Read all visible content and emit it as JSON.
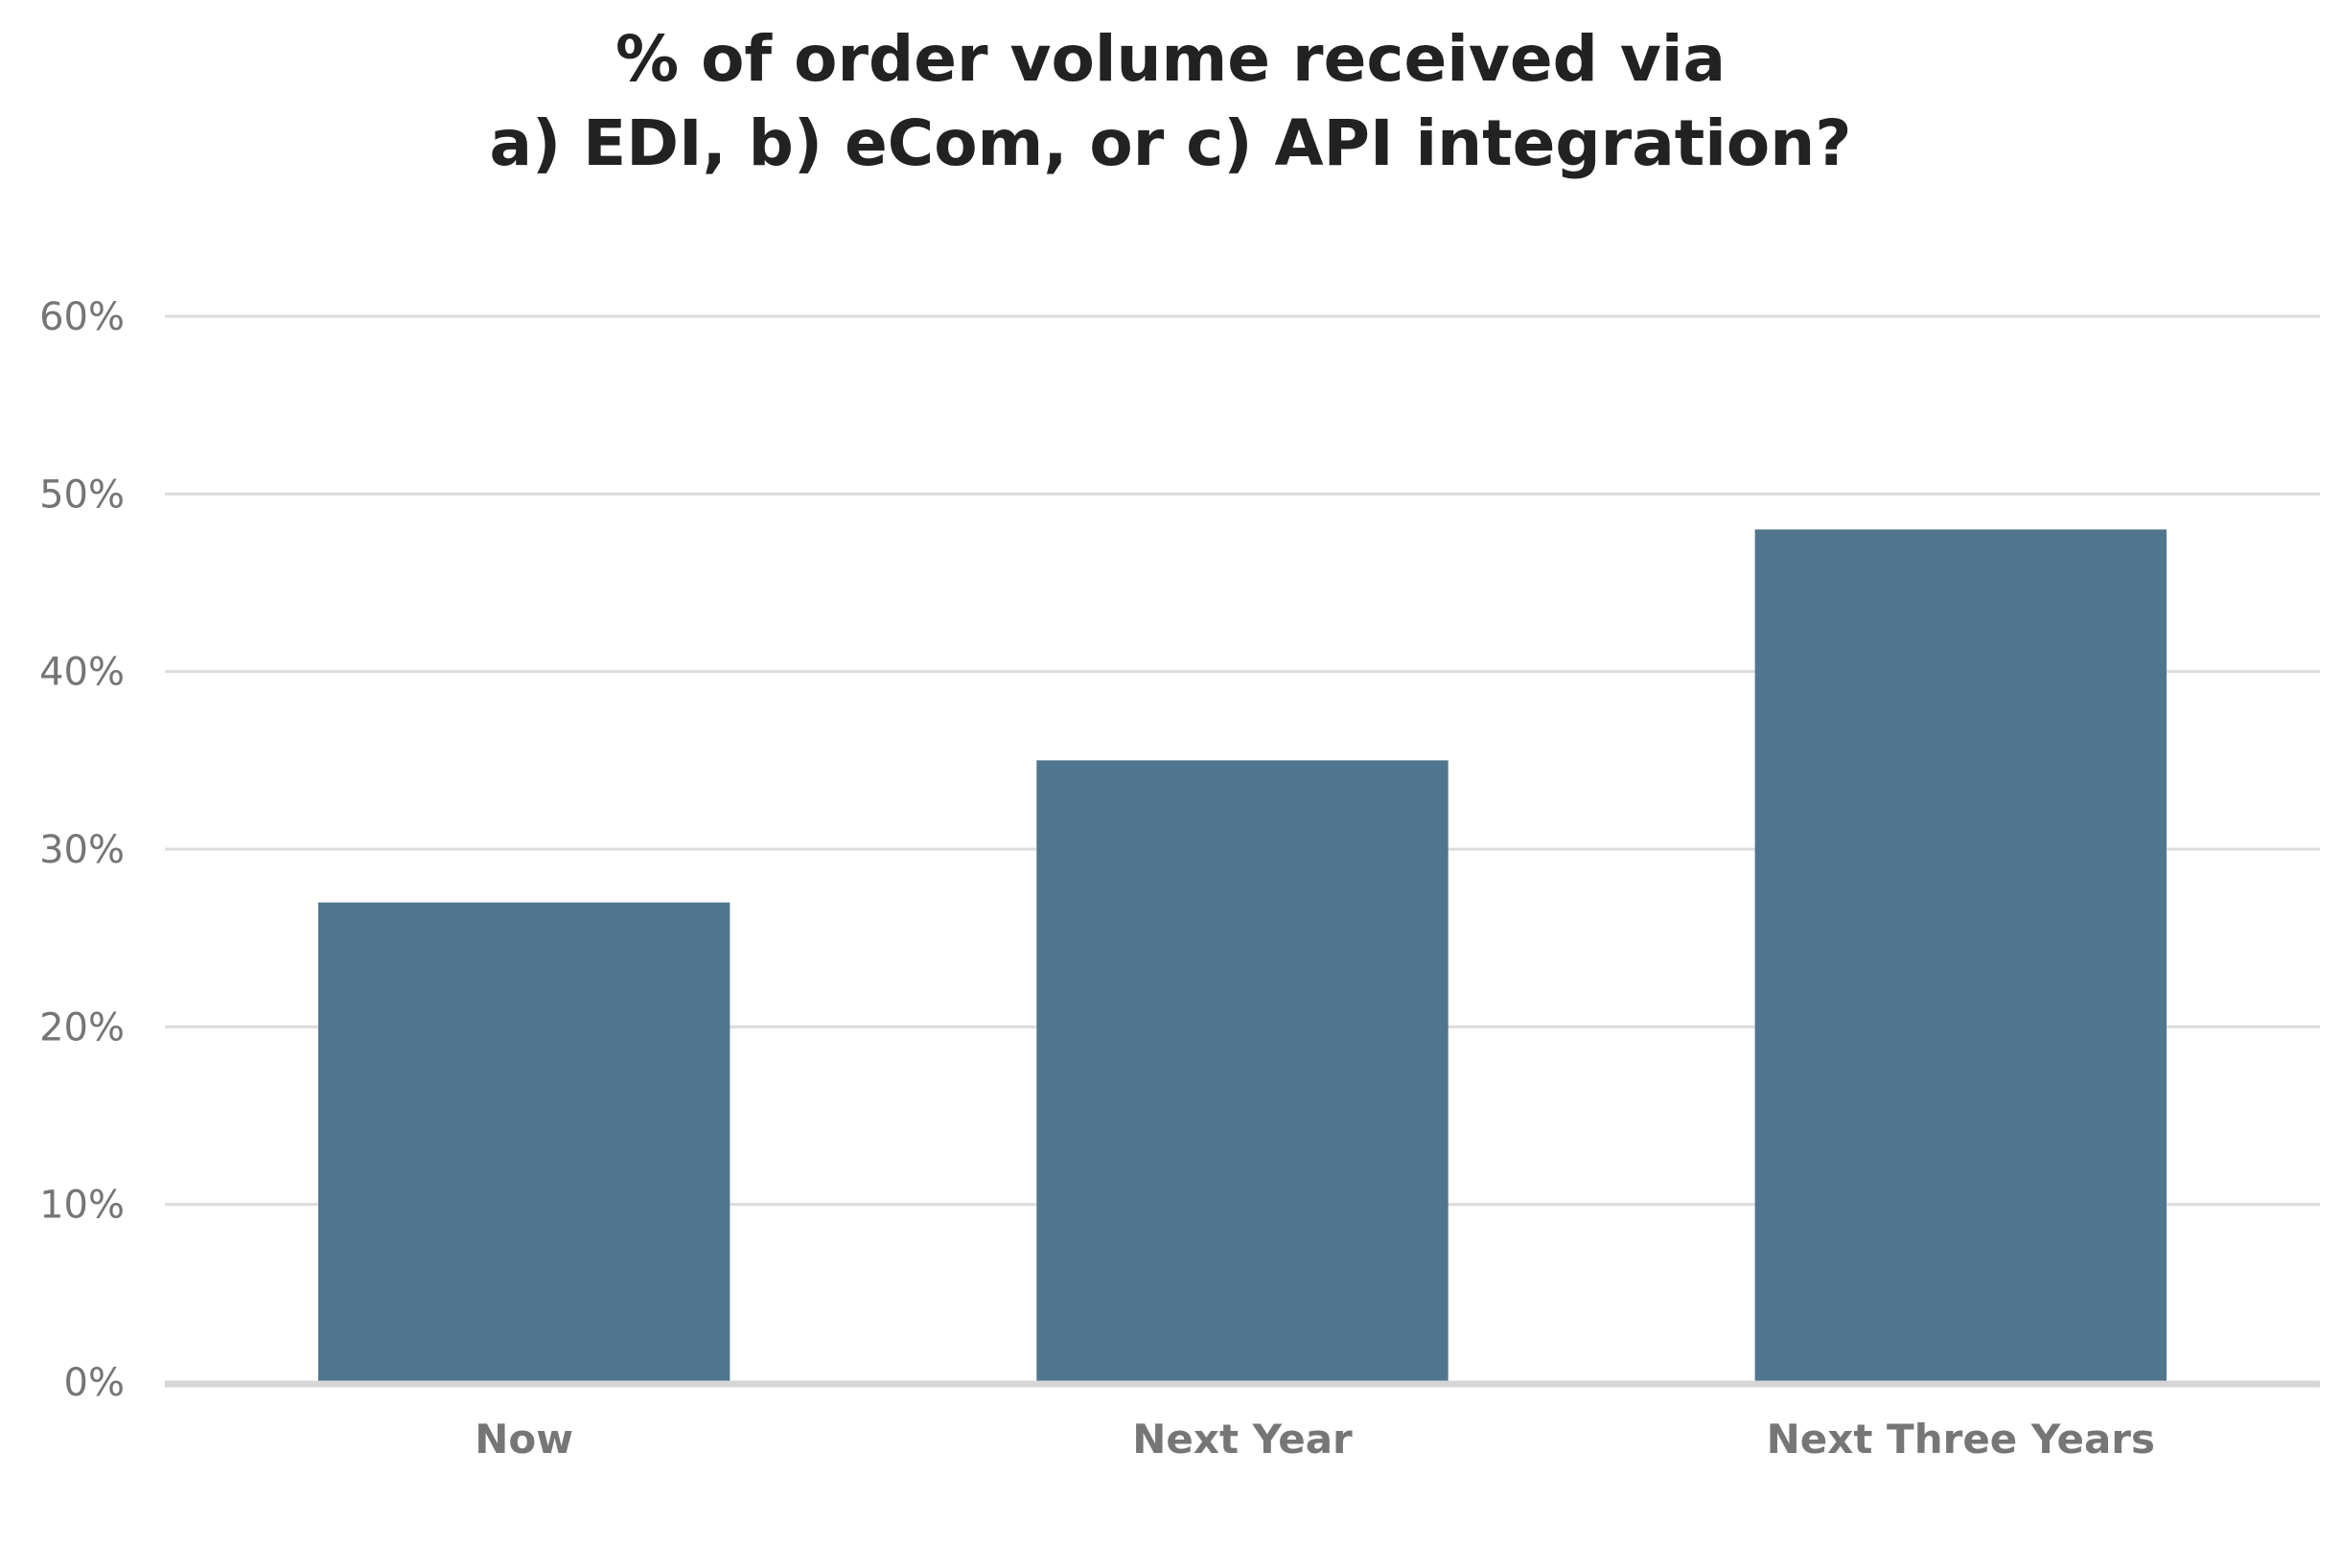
{
  "chart_data": {
    "type": "bar",
    "title": "% of order volume received via a) EDI, b) eCom, or c) API integration?",
    "title_lines": [
      "% of order volume received via",
      "a) EDI, b) eCom, or c) API integration?"
    ],
    "categories": [
      "Now",
      "Next Year",
      "Next Three Years"
    ],
    "values": [
      27,
      35,
      48
    ],
    "value_unit": "%",
    "ylim": [
      0,
      60
    ],
    "y_ticks": [
      0,
      10,
      20,
      30,
      40,
      50,
      60
    ],
    "y_tick_labels": [
      "0%",
      "10%",
      "20%",
      "30%",
      "40%",
      "50%",
      "60%"
    ],
    "xlabel": "",
    "ylabel": "",
    "grid": true,
    "legend": "none",
    "colors": {
      "bar": "#4f758f",
      "grid": "#dcdcdc",
      "baseline": "#d6d6d6",
      "title": "#222222",
      "tick_text": "#757575"
    }
  }
}
